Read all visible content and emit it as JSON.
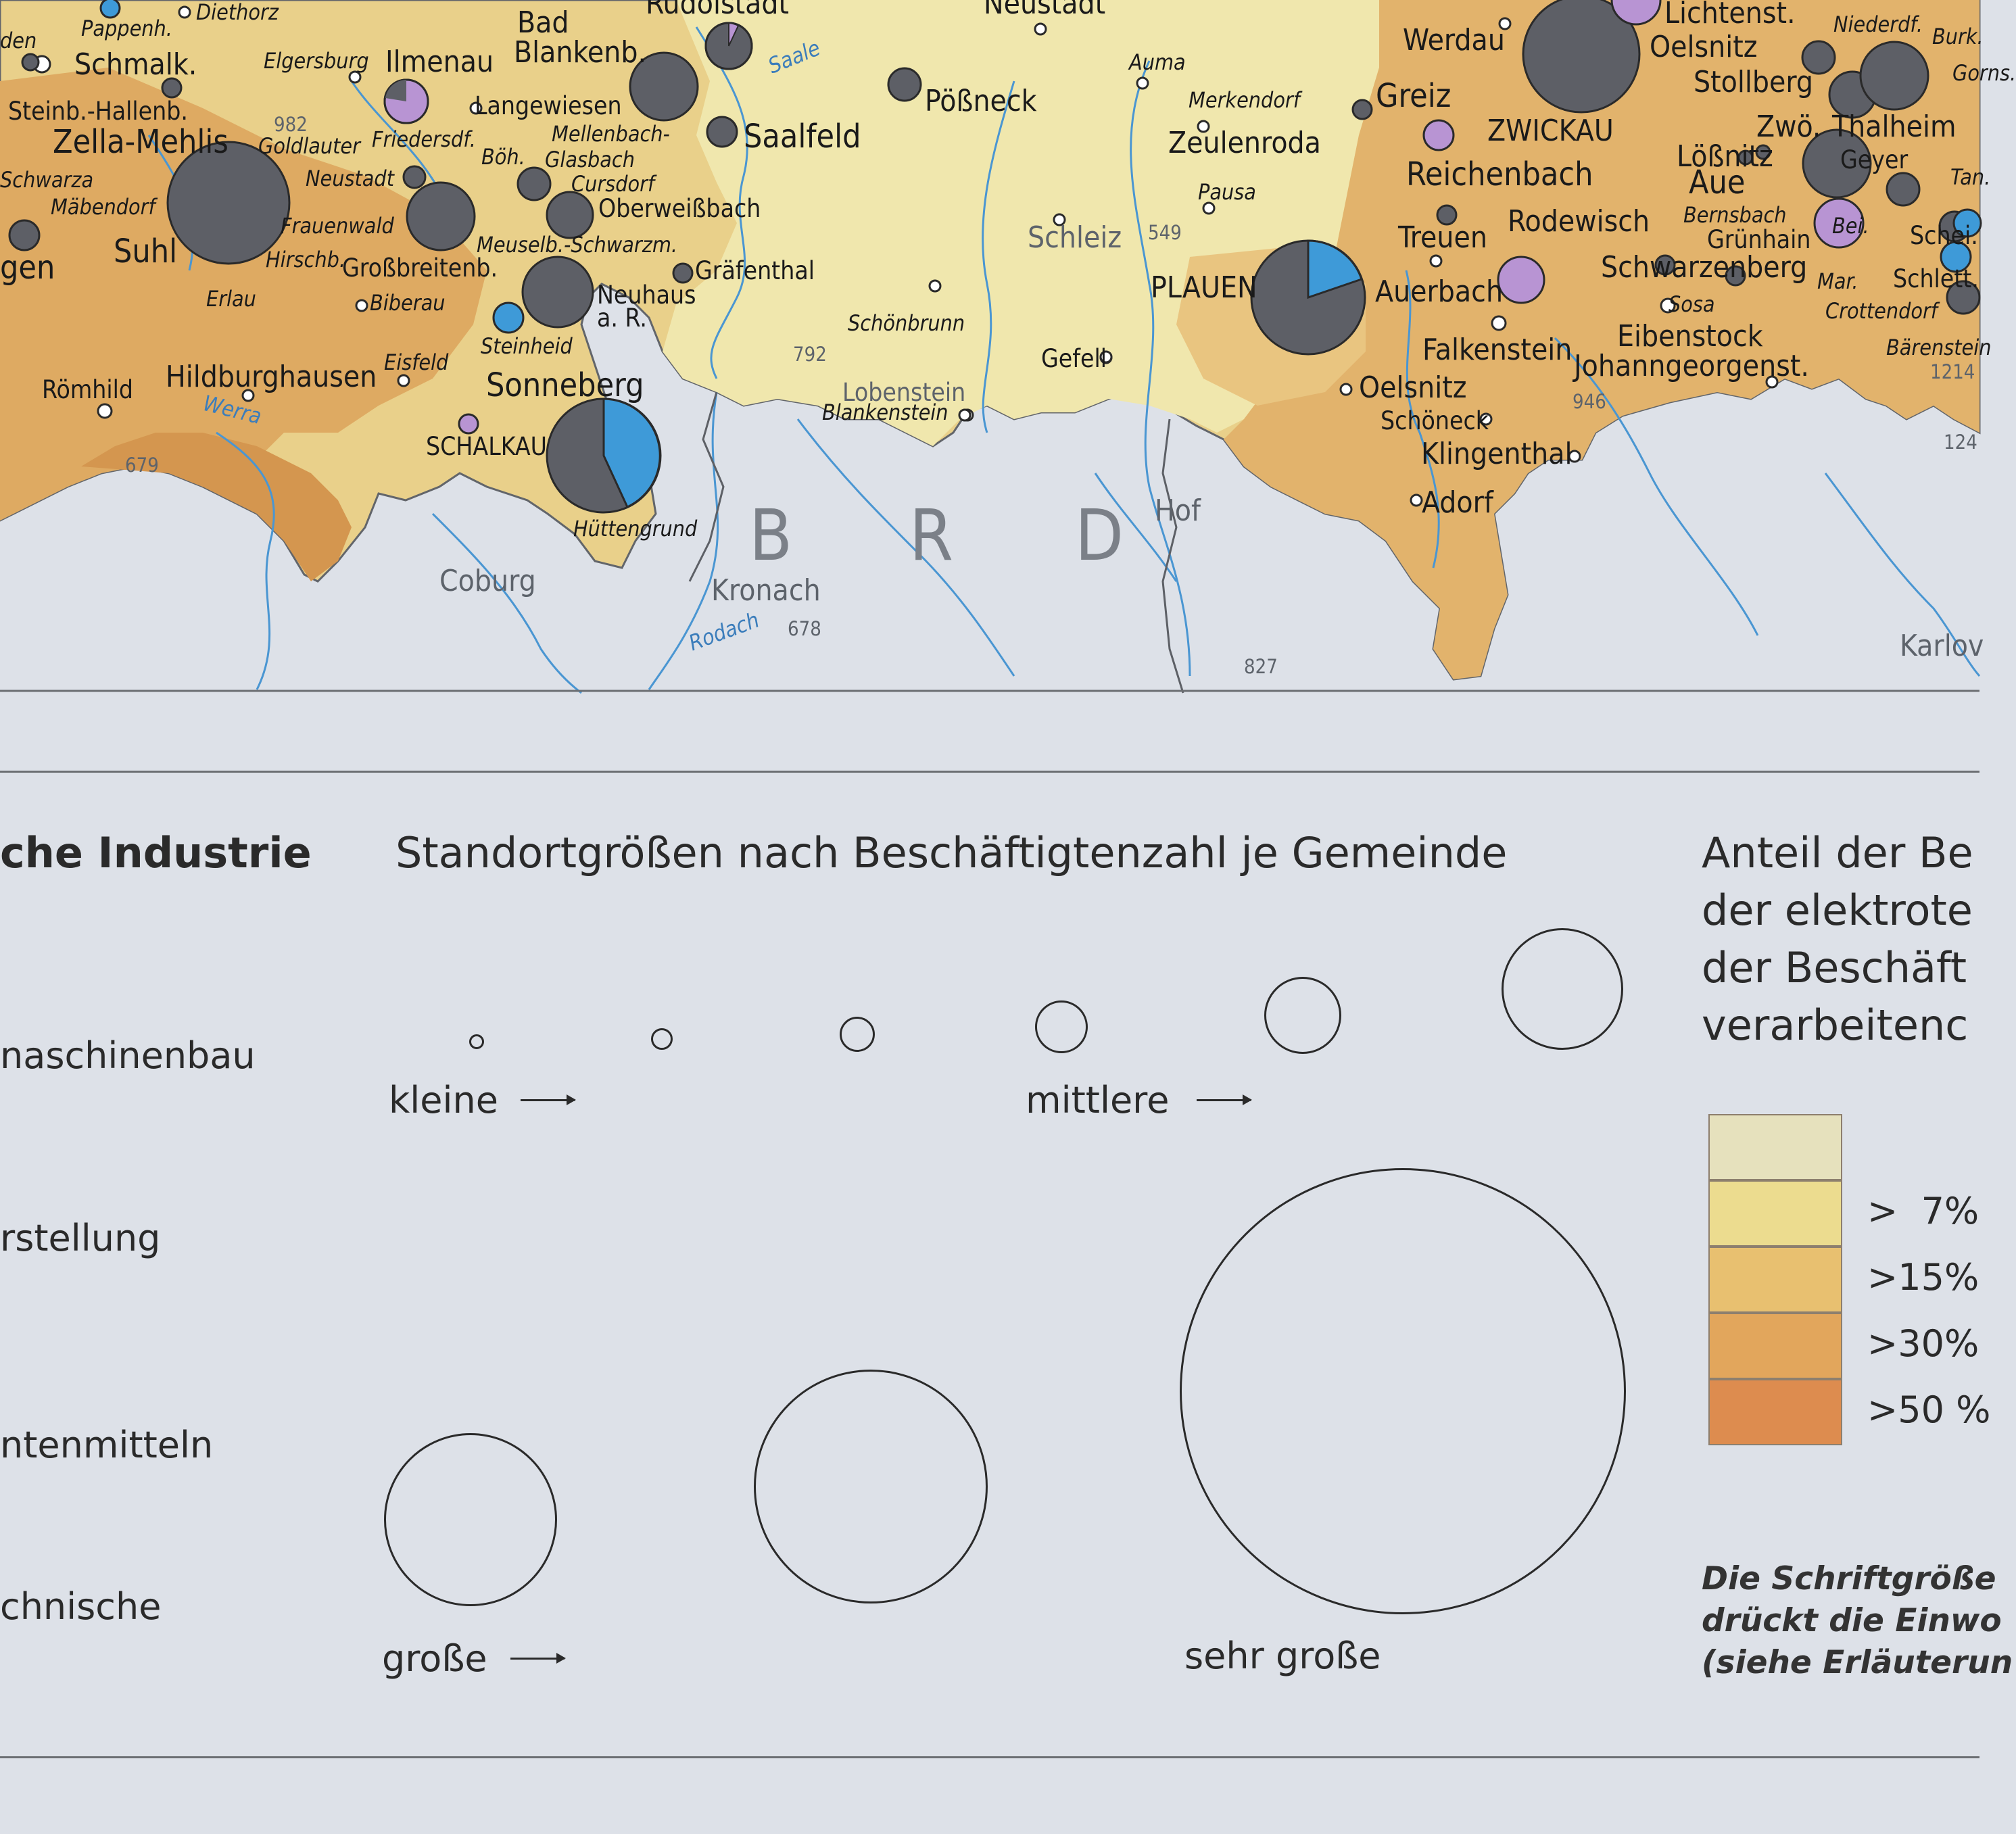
{
  "map": {
    "country_label": [
      "B",
      "R",
      "D"
    ],
    "colors": {
      "gdr_light": "#f0e7ad",
      "gdr_mid": "#ead08c",
      "gdr_ochre": "#e3b56b",
      "gdr_brown": "#d49a52",
      "outside": "#dde1e8",
      "river": "#4a96d2",
      "border": "#62656a",
      "pie_grey": "#5d5f66",
      "pie_blue": "#3e9ad8",
      "pie_lilac": "#b894d3"
    },
    "labels": [
      {
        "t": "den",
        "c": "sz-ital"
      },
      {
        "t": "Pappenh.",
        "c": "sz-ital"
      },
      {
        "t": "Diethorz",
        "c": "sz-ital"
      },
      {
        "t": "Schmalk.",
        "c": "sz-l"
      },
      {
        "t": "Elgersburg",
        "c": "sz-ital"
      },
      {
        "t": "Ilmenau",
        "c": "sz-l"
      },
      {
        "t": "Bad",
        "c": "sz-l"
      },
      {
        "t": "Blankenb.",
        "c": "sz-l"
      },
      {
        "t": "Rudolstadt",
        "c": "sz-l"
      },
      {
        "t": "Neustadt",
        "c": "sz-l"
      },
      {
        "t": "Auma",
        "c": "sz-ital"
      },
      {
        "t": "Werdau",
        "c": "sz-l"
      },
      {
        "t": "Lichtenst.",
        "c": "sz-l"
      },
      {
        "t": "Oelsnitz",
        "c": "sz-l"
      },
      {
        "t": "Niederdf.",
        "c": "sz-ital"
      },
      {
        "t": "Stollberg",
        "c": "sz-l"
      },
      {
        "t": "Steinb.-Hallenb.",
        "c": "sz-m"
      },
      {
        "t": "Langewiesen",
        "c": "sz-m"
      },
      {
        "t": "Zella-Mehlis",
        "c": "sz-xl"
      },
      {
        "t": "982",
        "c": "sz-s grey-lbl"
      },
      {
        "t": "Goldlauter",
        "c": "sz-ital"
      },
      {
        "t": "Friedersdf.",
        "c": "sz-ital"
      },
      {
        "t": "Mellenbach-",
        "c": "sz-ital"
      },
      {
        "t": "Glasbach",
        "c": "sz-ital"
      },
      {
        "t": "Böh.",
        "c": "sz-ital"
      },
      {
        "t": "Saalfeld",
        "c": "sz-xl"
      },
      {
        "t": "Pößneck",
        "c": "sz-l"
      },
      {
        "t": "Merkendorf",
        "c": "sz-ital"
      },
      {
        "t": "Zeulenroda",
        "c": "sz-l"
      },
      {
        "t": "Greiz",
        "c": "sz-xl"
      },
      {
        "t": "ZWICKAU",
        "c": "sz-l"
      },
      {
        "t": "Zwö.",
        "c": "sz-l"
      },
      {
        "t": "Thalheim",
        "c": "sz-l"
      },
      {
        "t": "Lößnitz",
        "c": "sz-l"
      },
      {
        "t": "Geyer",
        "c": "sz-m"
      },
      {
        "t": "Schwarza",
        "c": "sz-ital"
      },
      {
        "t": "Mäbendorf",
        "c": "sz-ital"
      },
      {
        "t": "Neustadt",
        "c": "sz-ital"
      },
      {
        "t": "Cursdorf",
        "c": "sz-ital"
      },
      {
        "t": "Oberweißbach",
        "c": "sz-m"
      },
      {
        "t": "Pausa",
        "c": "sz-ital"
      },
      {
        "t": "Reichenbach",
        "c": "sz-xl"
      },
      {
        "t": "Aue",
        "c": "sz-xl"
      },
      {
        "t": "Bernsbach",
        "c": "sz-ital"
      },
      {
        "t": "Grünhain",
        "c": "sz-m"
      },
      {
        "t": "Bei.",
        "c": "sz-ital"
      },
      {
        "t": "Schei.",
        "c": "sz-m"
      },
      {
        "t": "Tan.",
        "c": "sz-ital"
      },
      {
        "t": "Suhl",
        "c": "sz-xl"
      },
      {
        "t": "gen",
        "c": "sz-xl"
      },
      {
        "t": "Frauenwald",
        "c": "sz-ital"
      },
      {
        "t": "Hirschb.",
        "c": "sz-ital"
      },
      {
        "t": "Großbreitenb.",
        "c": "sz-m"
      },
      {
        "t": "Meuselb.-Schwarzm.",
        "c": "sz-ital"
      },
      {
        "t": "Schleiz",
        "c": "sz-l grey-lbl"
      },
      {
        "t": "549",
        "c": "sz-s grey-lbl"
      },
      {
        "t": "Treuen",
        "c": "sz-l"
      },
      {
        "t": "Rodewisch",
        "c": "sz-l"
      },
      {
        "t": "Schwarzenberg",
        "c": "sz-l"
      },
      {
        "t": "Mar.",
        "c": "sz-ital"
      },
      {
        "t": "Schlett.",
        "c": "sz-m"
      },
      {
        "t": "Gräfenthal",
        "c": "sz-m"
      },
      {
        "t": "Erlau",
        "c": "sz-ital"
      },
      {
        "t": "Biberau",
        "c": "sz-ital"
      },
      {
        "t": "Neuhaus",
        "c": "sz-m"
      },
      {
        "t": "a. R.",
        "c": "sz-m"
      },
      {
        "t": "PLAUEN",
        "c": "sz-l"
      },
      {
        "t": "Auerbach",
        "c": "sz-l"
      },
      {
        "t": "Sosa",
        "c": "sz-ital"
      },
      {
        "t": "Crottendorf",
        "c": "sz-ital"
      },
      {
        "t": "Schönbrunn",
        "c": "sz-ital"
      },
      {
        "t": "Steinheid",
        "c": "sz-ital"
      },
      {
        "t": "Eibenstock",
        "c": "sz-l"
      },
      {
        "t": "Falkenstein",
        "c": "sz-l"
      },
      {
        "t": "Johanngeorgenst.",
        "c": "sz-l"
      },
      {
        "t": "Bärenstein",
        "c": "sz-ital"
      },
      {
        "t": "1214",
        "c": "sz-s grey-lbl"
      },
      {
        "t": "792",
        "c": "sz-s grey-lbl"
      },
      {
        "t": "Gefell",
        "c": "sz-m"
      },
      {
        "t": "Römhild",
        "c": "sz-m"
      },
      {
        "t": "Hildburghausen",
        "c": "sz-l"
      },
      {
        "t": "Eisfeld",
        "c": "sz-ital"
      },
      {
        "t": "Sonneberg",
        "c": "sz-xl"
      },
      {
        "t": "Lobenstein",
        "c": "sz-m grey-lbl"
      },
      {
        "t": "Blankenstein",
        "c": "sz-ital"
      },
      {
        "t": "Oelsnitz",
        "c": "sz-l"
      },
      {
        "t": "946",
        "c": "sz-s grey-lbl"
      },
      {
        "t": "Werra",
        "c": "sz-ital river-lbl"
      },
      {
        "t": "Schöneck",
        "c": "sz-m"
      },
      {
        "t": "SCHALKAU",
        "c": "sz-m"
      },
      {
        "t": "Klingenthal",
        "c": "sz-l"
      },
      {
        "t": "124",
        "c": "sz-s grey-lbl"
      },
      {
        "t": "679",
        "c": "sz-s grey-lbl"
      },
      {
        "t": "Adorf",
        "c": "sz-l"
      },
      {
        "t": "Hof",
        "c": "sz-l grey-lbl"
      },
      {
        "t": "Hüttengrund",
        "c": "sz-ital"
      },
      {
        "t": "Coburg",
        "c": "sz-l grey-lbl"
      },
      {
        "t": "Kronach",
        "c": "sz-l grey-lbl"
      },
      {
        "t": "Rodach",
        "c": "sz-ital river-lbl"
      },
      {
        "t": "678",
        "c": "sz-s grey-lbl"
      },
      {
        "t": "Karlov",
        "c": "sz-l grey-lbl"
      },
      {
        "t": "827",
        "c": "sz-s grey-lbl"
      },
      {
        "t": "Saale",
        "c": "sz-ital river-lbl"
      },
      {
        "t": "Burk.",
        "c": "sz-ital"
      },
      {
        "t": "Gorns.",
        "c": "sz-ital"
      }
    ]
  },
  "legend": {
    "section_left_title": "che Industrie",
    "section_left_items": [
      "naschinenbau",
      "rstellung",
      "ntenmitteln",
      "chnische"
    ],
    "sizes_title": "Standortgrößen nach Beschäftigtenzahl je Gemeinde",
    "size_labels": {
      "small": "kleine",
      "medium": "mittlere",
      "large": "große",
      "very_large": "sehr große"
    },
    "share_title": [
      "Anteil der Be",
      "der elektrote",
      "der Beschäft",
      "verarbeitenc"
    ],
    "share_classes": [
      {
        "label": "",
        "color": "#e6e1bd"
      },
      {
        "label": ">  7%",
        "color": "#ecdc8f"
      },
      {
        "label": ">15%",
        "color": "#e8c070"
      },
      {
        "label": ">30%",
        "color": "#e2a65c"
      },
      {
        "label": ">50 %",
        "color": "#dd8c4f"
      }
    ],
    "note": [
      "Die Schriftgröße",
      "drückt die Einwo",
      "(siehe Erläuterun"
    ]
  }
}
